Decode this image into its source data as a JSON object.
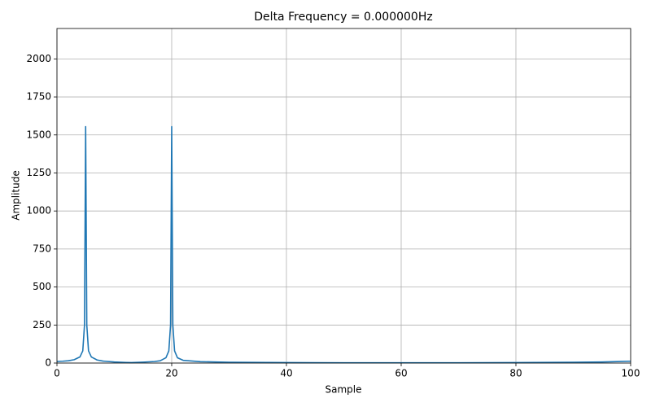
{
  "chart_data": {
    "type": "line",
    "title": "Delta Frequency = 0.000000Hz",
    "x_label": "Sample",
    "y_label": "Amplitude",
    "x": [
      0,
      1,
      2,
      3,
      4,
      4.5,
      4.8,
      5,
      5.2,
      5.5,
      6,
      7,
      8,
      10,
      12,
      13,
      15,
      17,
      18,
      19,
      19.5,
      19.8,
      20,
      20.2,
      20.5,
      21,
      22,
      25,
      30,
      40,
      50,
      60,
      70,
      80,
      90,
      95,
      100
    ],
    "values": [
      10,
      12,
      15,
      22,
      40,
      80,
      250,
      1555,
      250,
      80,
      40,
      20,
      13,
      7,
      4,
      3,
      6,
      10,
      15,
      35,
      80,
      250,
      1555,
      250,
      80,
      35,
      18,
      9,
      5,
      3,
      2,
      2,
      2,
      3,
      5,
      7,
      12
    ],
    "color": "#1f77b4",
    "xlim": [
      0,
      100
    ],
    "xticks": [
      0,
      20,
      40,
      60,
      80,
      100
    ],
    "ylim": [
      0,
      2200
    ],
    "yticks": [
      0,
      250,
      500,
      750,
      1000,
      1250,
      1500,
      1750,
      2000
    ],
    "grid": true
  }
}
